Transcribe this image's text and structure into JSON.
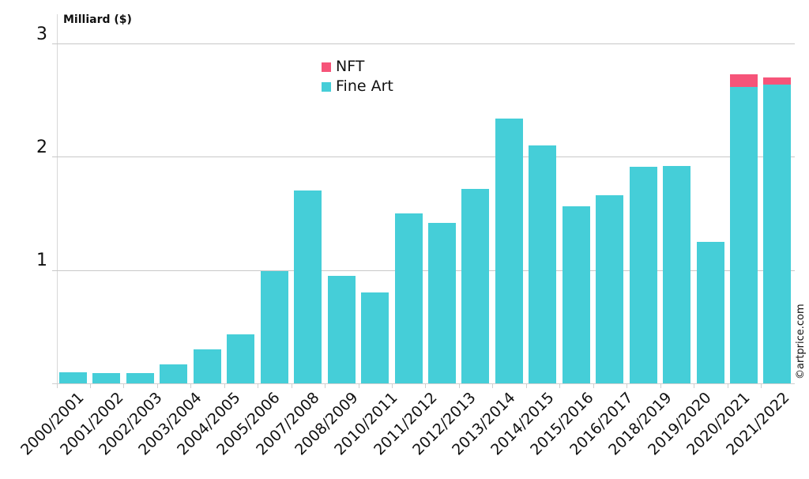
{
  "chart_data": {
    "type": "bar",
    "stacked": true,
    "title": "",
    "ylabel": "Milliard ($)",
    "xlabel": "",
    "ylim": [
      0,
      3.2
    ],
    "yticks": [
      1,
      2,
      3
    ],
    "grid": true,
    "legend_position": "top-center",
    "colors": {
      "Fine Art": "#45ced8",
      "NFT": "#f65479"
    },
    "x_tick_labels": [
      "2000/2001",
      "2001/2002",
      "2002/2003",
      "2003/2004",
      "2004/2005",
      "2005/2006",
      "2007/2008",
      "2008/2009",
      "2010/2011",
      "2011/2012",
      "2012/2013",
      "2013/2014",
      "2014/2015",
      "2015/2016",
      "2016/2017",
      "2018/2019",
      "2019/2020",
      "2020/2021",
      "2021/2022"
    ],
    "bar_count": 22,
    "series": [
      {
        "name": "Fine Art",
        "values": [
          0.1,
          0.09,
          0.09,
          0.17,
          0.3,
          0.43,
          0.99,
          1.7,
          0.95,
          0.8,
          1.5,
          1.42,
          1.72,
          2.34,
          2.1,
          1.56,
          1.66,
          1.91,
          1.92,
          1.25,
          2.62,
          2.64
        ]
      },
      {
        "name": "NFT",
        "values": [
          0,
          0,
          0,
          0,
          0,
          0,
          0,
          0,
          0,
          0,
          0,
          0,
          0,
          0,
          0,
          0,
          0,
          0,
          0,
          0,
          0.11,
          0.06
        ]
      }
    ],
    "annotations": [
      "©artprice.com"
    ]
  },
  "unit_label": "Milliard ($)",
  "legend": [
    {
      "label": "NFT",
      "color": "#f65479"
    },
    {
      "label": "Fine Art",
      "color": "#45ced8"
    }
  ],
  "y_ticks": [
    "1",
    "2",
    "3"
  ],
  "credit": "©artprice.com"
}
